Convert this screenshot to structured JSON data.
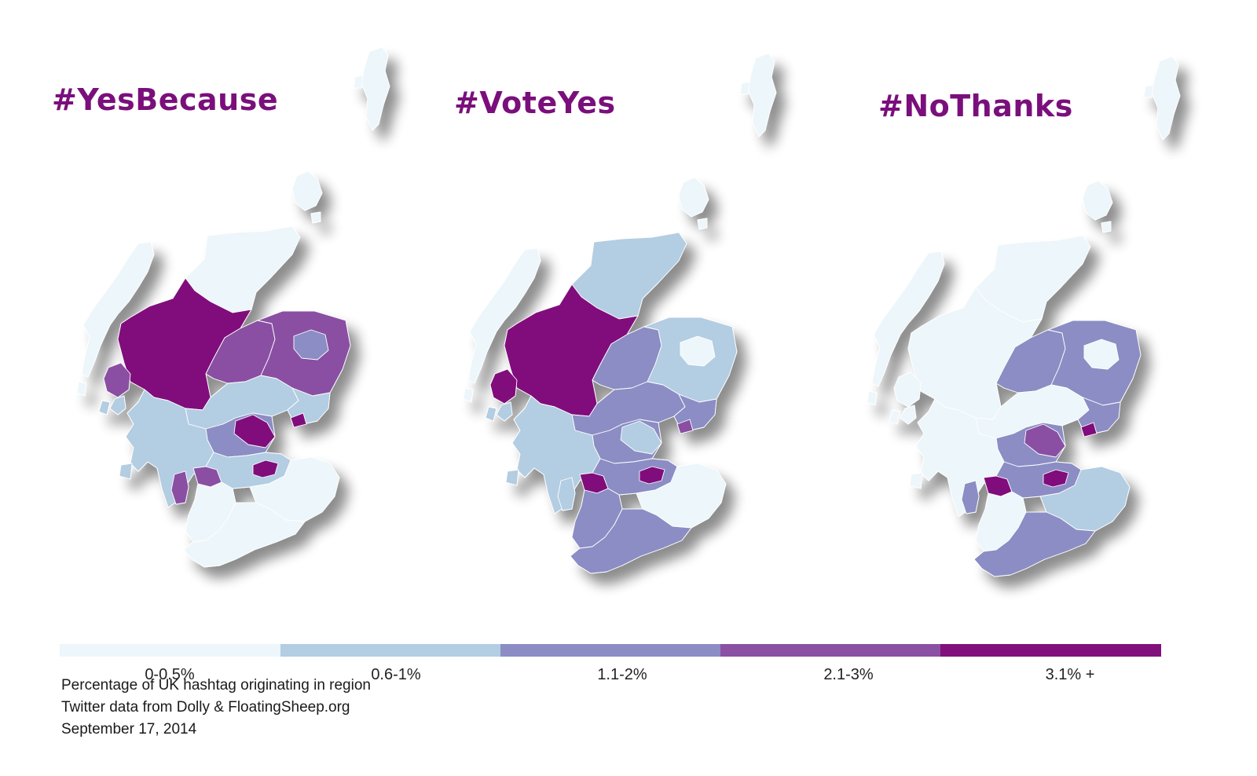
{
  "maps": [
    {
      "title": "#YesBecause",
      "regions": {
        "shetland": "0-0.5%",
        "orkney": "0-0.5%",
        "lewis": "0-0.5%",
        "skye": "2.1-3%",
        "caithness": "0-0.5%",
        "highland": "3.1% +",
        "moray": "2.1-3%",
        "aberdeenshire": "2.1-3%",
        "aberdeen": "1.1-2%",
        "perth": "0.6-1%",
        "angus": "0.6-1%",
        "dundee": "3.1% +",
        "stirling": "1.1-2%",
        "fife": "3.1% +",
        "argyll": "0.6-1%",
        "edinburgh": "3.1% +",
        "glasgow": "2.1-3%",
        "lanark": "0.6-1%",
        "ayrshire": "0-0.5%",
        "borders": "0-0.5%",
        "dumfries": "0-0.5%",
        "arran": "2.1-3%"
      }
    },
    {
      "title": "#VoteYes",
      "regions": {
        "shetland": "0-0.5%",
        "orkney": "0-0.5%",
        "lewis": "0-0.5%",
        "skye": "3.1% +",
        "caithness": "0.6-1%",
        "highland": "3.1% +",
        "moray": "1.1-2%",
        "aberdeenshire": "0.6-1%",
        "aberdeen": "0-0.5%",
        "perth": "1.1-2%",
        "angus": "1.1-2%",
        "dundee": "2.1-3%",
        "stirling": "1.1-2%",
        "fife": "0.6-1%",
        "argyll": "0.6-1%",
        "edinburgh": "3.1% +",
        "glasgow": "3.1% +",
        "lanark": "1.1-2%",
        "ayrshire": "1.1-2%",
        "borders": "0-0.5%",
        "dumfries": "1.1-2%",
        "arran": "0.6-1%"
      }
    },
    {
      "title": "#NoThanks",
      "regions": {
        "shetland": "0-0.5%",
        "orkney": "0-0.5%",
        "lewis": "0-0.5%",
        "skye": "0-0.5%",
        "caithness": "0-0.5%",
        "highland": "0-0.5%",
        "moray": "1.1-2%",
        "aberdeenshire": "1.1-2%",
        "aberdeen": "0-0.5%",
        "perth": "0-0.5%",
        "angus": "1.1-2%",
        "dundee": "3.1% +",
        "stirling": "1.1-2%",
        "fife": "2.1-3%",
        "argyll": "0-0.5%",
        "edinburgh": "3.1% +",
        "glasgow": "3.1% +",
        "lanark": "1.1-2%",
        "ayrshire": "0-0.5%",
        "borders": "0.6-1%",
        "dumfries": "1.1-2%",
        "arran": "1.1-2%"
      }
    }
  ],
  "legend": [
    {
      "label": "0-0.5%",
      "color": "#edf6fa"
    },
    {
      "label": "0.6-1%",
      "color": "#b3cde2"
    },
    {
      "label": "1.1-2%",
      "color": "#8b8dc4"
    },
    {
      "label": "2.1-3%",
      "color": "#8a50a3"
    },
    {
      "label": "3.1% +",
      "color": "#810f7c"
    }
  ],
  "notes": [
    "Percentage of UK hashtag originating in region",
    "Twitter data from Dolly & FloatingSheep.org",
    "September 17, 2014"
  ]
}
